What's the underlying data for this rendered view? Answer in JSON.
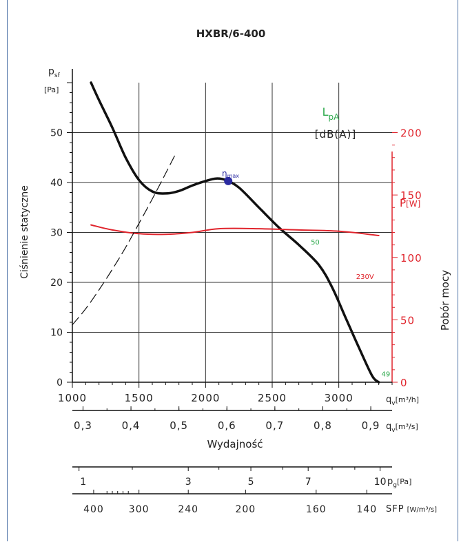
{
  "chart_data": {
    "type": "line",
    "title": "HXBR/6-400",
    "left_axis": {
      "symbol": "p",
      "symbol_sub": "sf",
      "unit": "[Pa]",
      "label": "Ciśnienie statyczne",
      "ylim": [
        0,
        60
      ],
      "ticks": [
        0,
        10,
        20,
        30,
        40,
        50
      ]
    },
    "right_axis": {
      "symbol": "P",
      "unit": "[W]",
      "label": "Pobór mocy",
      "ylim": [
        0,
        240
      ],
      "ticks": [
        0,
        50,
        100,
        150,
        200
      ],
      "color": "#e0242c"
    },
    "x_axis": {
      "xlim": [
        1000,
        3400
      ],
      "ticks": [
        1000,
        1500,
        2000,
        2500,
        3000
      ],
      "unit_label": "q",
      "unit_sub": "v",
      "unit": "[m³/h]"
    },
    "x_axis_m3s": {
      "ticks": [
        "0,3",
        "0,4",
        "0,5",
        "0,6",
        "0,7",
        "0,8",
        "0,9"
      ],
      "tick_values": [
        0.3,
        0.4,
        0.5,
        0.6,
        0.7,
        0.8,
        0.9
      ],
      "unit_label": "q",
      "unit_sub": "v",
      "unit": "[m³/s]",
      "label": "Wydajność"
    },
    "pg_axis": {
      "ticks": [
        "1",
        "3",
        "5",
        "7",
        "10"
      ],
      "tick_positions_m3h": [
        1050,
        1870,
        2340,
        2770,
        3310
      ],
      "label": "p",
      "label_sub": "g",
      "unit": "[Pa]"
    },
    "sfp_axis": {
      "ticks": [
        "400",
        "300",
        "240",
        "200",
        "160",
        "140"
      ],
      "tick_positions_m3h": [
        1160,
        1500,
        1870,
        2300,
        2830,
        3210
      ],
      "label": "SFP",
      "unit": "[W/m³/s]"
    },
    "lpa_label": {
      "symbol": "L",
      "sub": "pA",
      "unit": "[dB(A)]",
      "color": "#2aa84a"
    },
    "eta_label": {
      "symbol": "η",
      "sub": "max",
      "color": "#2a2aa0"
    },
    "series": [
      {
        "name": "",
        "axis": "left",
        "color": "#111111",
        "points": [
          [
            1140,
            60
          ],
          [
            1200,
            56.5
          ],
          [
            1300,
            51
          ],
          [
            1400,
            45
          ],
          [
            1500,
            40.5
          ],
          [
            1600,
            38.2
          ],
          [
            1700,
            37.8
          ],
          [
            1800,
            38.3
          ],
          [
            1900,
            39.4
          ],
          [
            2000,
            40.3
          ],
          [
            2080,
            40.8
          ],
          [
            2150,
            40.5
          ],
          [
            2250,
            39
          ],
          [
            2400,
            35
          ],
          [
            2550,
            31
          ],
          [
            2700,
            27.5
          ],
          [
            2850,
            23.5
          ],
          [
            2950,
            19
          ],
          [
            3050,
            13
          ],
          [
            3150,
            7
          ],
          [
            3250,
            1.3
          ],
          [
            3300,
            0
          ]
        ]
      },
      {
        "name": "230V",
        "axis": "right",
        "color": "#e0242c",
        "points": [
          [
            1140,
            126
          ],
          [
            1300,
            122
          ],
          [
            1500,
            119
          ],
          [
            1700,
            118.5
          ],
          [
            1900,
            120
          ],
          [
            2100,
            123
          ],
          [
            2400,
            123
          ],
          [
            2700,
            122
          ],
          [
            3000,
            121
          ],
          [
            3300,
            117.5
          ]
        ]
      },
      {
        "name": "",
        "axis": "left",
        "style": "dashed",
        "color": "#111111",
        "points": [
          [
            1000,
            11.5
          ],
          [
            1100,
            14.7
          ],
          [
            1200,
            18.5
          ],
          [
            1300,
            22.6
          ],
          [
            1400,
            27
          ],
          [
            1500,
            31.8
          ],
          [
            1600,
            36.7
          ],
          [
            1700,
            41.8
          ],
          [
            1780,
            46
          ]
        ]
      }
    ],
    "eta_point": {
      "x": 2170,
      "y": 40.3
    },
    "annotations": [
      {
        "text": "50",
        "x": 2790,
        "y": 27.6,
        "color": "#2aa84a"
      },
      {
        "text": "49",
        "x": 3320,
        "y": 1.2,
        "color": "#2aa84a"
      },
      {
        "text": "230V",
        "x": 3130,
        "y": 20.7,
        "color": "#e0242c"
      }
    ],
    "grid": true
  }
}
